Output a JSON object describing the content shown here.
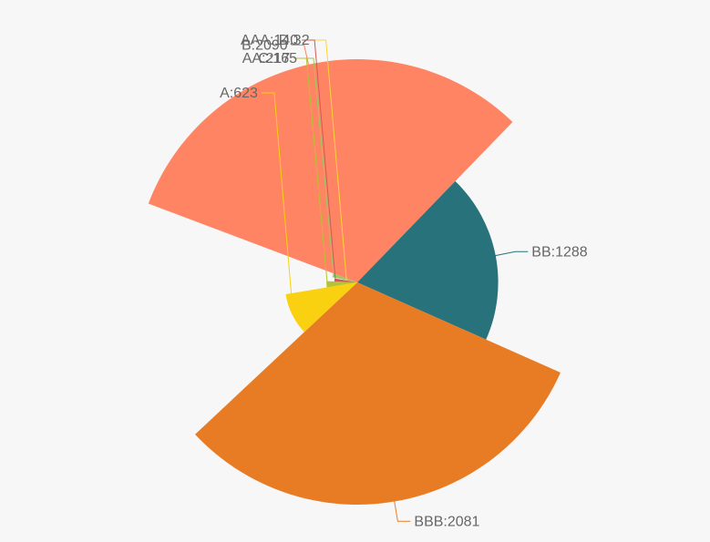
{
  "chart_data": {
    "type": "pie",
    "rose_type": "radius",
    "title": "",
    "slices": [
      {
        "name": "D",
        "value": 32,
        "label": "D:32",
        "color": "#fcd53a"
      },
      {
        "name": "C",
        "value": 165,
        "label": "C:165",
        "color": "#9bca63"
      },
      {
        "name": "B",
        "value": 2090,
        "label": "B:2090",
        "color": "#ff8463"
      },
      {
        "name": "BB",
        "value": 1288,
        "label": "BB:1288",
        "color": "#27727b"
      },
      {
        "name": "BBB",
        "value": 2081,
        "label": "BBB:2081",
        "color": "#e87c25"
      },
      {
        "name": "A",
        "value": 623,
        "label": "A:623",
        "color": "#fad111"
      },
      {
        "name": "AA",
        "value": 217,
        "label": "AA:217",
        "color": "#b5c334"
      },
      {
        "name": "AAA",
        "value": 140,
        "label": "AAA:140",
        "color": "#d05a57"
      }
    ]
  }
}
